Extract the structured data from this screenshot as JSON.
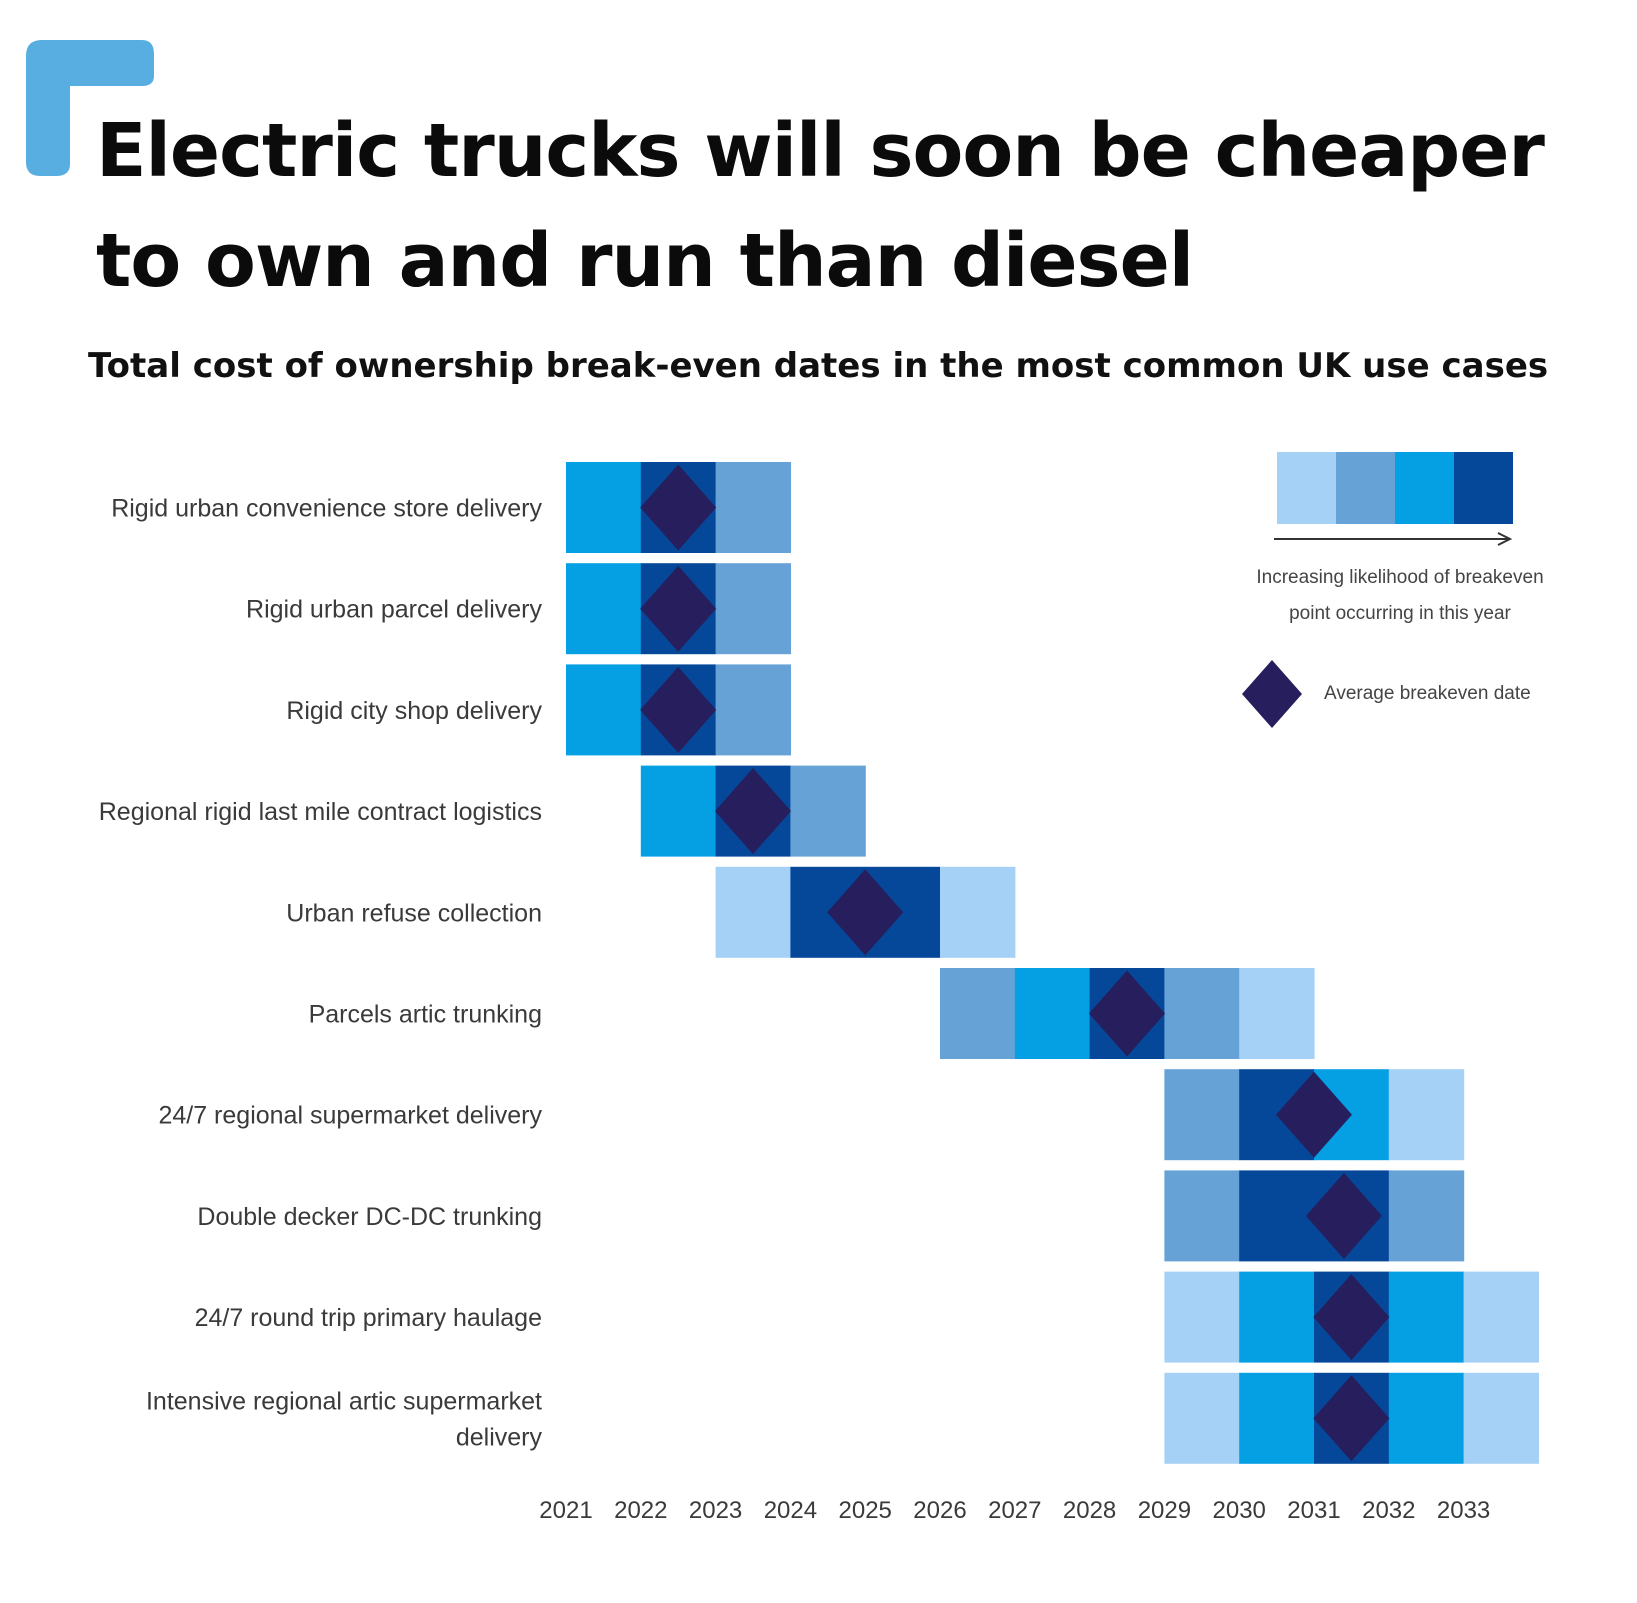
{
  "title_line1": "Electric trucks will soon be cheaper",
  "title_line2": "to own and run than diesel",
  "subtitle": "Total cost of ownership break-even dates in the most common UK use cases",
  "colors": {
    "accent": "#58aee0",
    "level1": "#a6d1f7",
    "level2": "#66a2d6",
    "level3": "#05a0e3",
    "level4": "#05489a",
    "diamond": "#261e5d"
  },
  "legend": {
    "caption_line1": "Increasing likelihood of breakeven",
    "caption_line2": "point occurring in this year",
    "average_label": "Average breakeven date",
    "levels": [
      1,
      2,
      3,
      4
    ]
  },
  "chart_data": {
    "type": "heatmap",
    "title": "Total cost of ownership break-even dates in the most common UK use cases",
    "x_ticks": [
      "2021",
      "2022",
      "2023",
      "2024",
      "2025",
      "2026",
      "2027",
      "2028",
      "2029",
      "2030",
      "2031",
      "2032",
      "2033"
    ],
    "xlim": [
      2021,
      2034
    ],
    "value_meaning": "likelihood level 1 (lowest) to 4 (highest) of breakeven point occurring in this year",
    "rows": [
      {
        "label": "Rigid urban convenience store delivery",
        "start_year": 2021,
        "levels": [
          3,
          4,
          2
        ],
        "average": 2022.5
      },
      {
        "label": "Rigid urban parcel delivery",
        "start_year": 2021,
        "levels": [
          3,
          4,
          2
        ],
        "average": 2022.5
      },
      {
        "label": "Rigid city shop delivery",
        "start_year": 2021,
        "levels": [
          3,
          4,
          2
        ],
        "average": 2022.5
      },
      {
        "label": "Regional rigid last mile contract logistics",
        "start_year": 2022,
        "levels": [
          3,
          4,
          2
        ],
        "average": 2023.5
      },
      {
        "label": "Urban refuse collection",
        "start_year": 2023,
        "levels": [
          1,
          4,
          4,
          1
        ],
        "average": 2025.0
      },
      {
        "label": "Parcels artic trunking",
        "start_year": 2026,
        "levels": [
          2,
          3,
          4,
          2,
          1
        ],
        "average": 2028.5
      },
      {
        "label": "24/7 regional supermarket delivery",
        "start_year": 2029,
        "levels": [
          2,
          4,
          3,
          1
        ],
        "average": 2031.0
      },
      {
        "label": "Double decker DC-DC trunking",
        "start_year": 2029,
        "levels": [
          2,
          4,
          4,
          2
        ],
        "average": 2031.4
      },
      {
        "label": "24/7 round trip primary haulage",
        "start_year": 2029,
        "levels": [
          1,
          3,
          4,
          3,
          1
        ],
        "average": 2031.5
      },
      {
        "label": "Intensive regional artic supermarket delivery",
        "start_year": 2029,
        "levels": [
          1,
          3,
          4,
          3,
          1
        ],
        "average": 2031.5
      }
    ]
  }
}
